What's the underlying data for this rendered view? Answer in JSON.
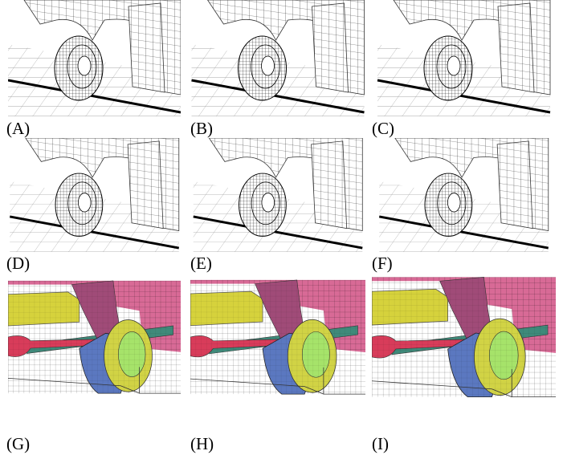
{
  "panels": [
    {
      "label": "(A)"
    },
    {
      "label": "(B)"
    },
    {
      "label": "(C)"
    },
    {
      "label": "(D)"
    },
    {
      "label": "(E)"
    },
    {
      "label": "(F)"
    },
    {
      "label": "(G)"
    },
    {
      "label": "(H)"
    },
    {
      "label": "(I)"
    }
  ]
}
